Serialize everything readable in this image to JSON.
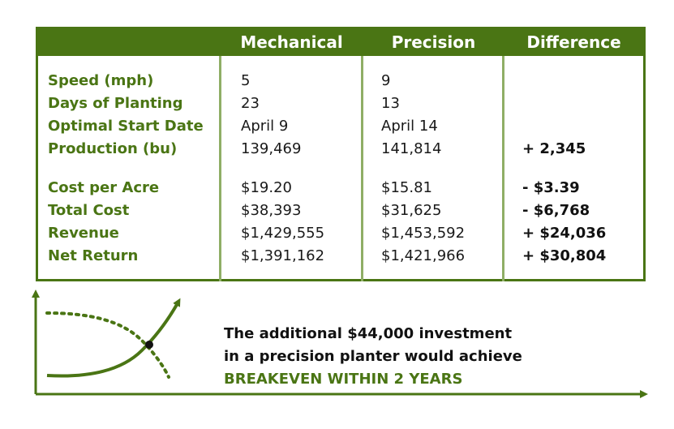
{
  "table": {
    "headers": [
      "",
      "Mechanical",
      "Precision",
      "Difference"
    ],
    "rows": [
      {
        "label": "Speed (mph)",
        "mechanical": "5",
        "precision": "9",
        "difference": ""
      },
      {
        "label": "Days of Planting",
        "mechanical": "23",
        "precision": "13",
        "difference": ""
      },
      {
        "label": "Optimal Start Date",
        "mechanical": "April 9",
        "precision": "April 14",
        "difference": ""
      },
      {
        "label": "Production (bu)",
        "mechanical": "139,469",
        "precision": "141,814",
        "difference": "+ 2,345"
      },
      {
        "label": "Cost per Acre",
        "mechanical": "$19.20",
        "precision": "$15.81",
        "difference": "- $3.39"
      },
      {
        "label": "Total Cost",
        "mechanical": "$38,393",
        "precision": "$31,625",
        "difference": "- $6,768"
      },
      {
        "label": "Revenue",
        "mechanical": "$1,429,555",
        "precision": "$1,453,592",
        "difference": "+ $24,036"
      },
      {
        "label": "Net Return",
        "mechanical": "$1,391,162",
        "precision": "$1,421,966",
        "difference": "+ $30,804"
      }
    ]
  },
  "note": {
    "line1": "The additional $44,000 investment",
    "line2": "in a precision planter would achieve",
    "highlight": "BREAKEVEN WITHIN 2 YEARS"
  },
  "colors": {
    "accent": "#4a7514",
    "divider": "#8fae66"
  },
  "chart_data": {
    "type": "table",
    "columns": [
      "Mechanical",
      "Precision",
      "Difference"
    ],
    "rows": [
      {
        "metric": "Speed (mph)",
        "mechanical": 5,
        "precision": 9
      },
      {
        "metric": "Days of Planting",
        "mechanical": 23,
        "precision": 13
      },
      {
        "metric": "Optimal Start Date",
        "mechanical": "April 9",
        "precision": "April 14"
      },
      {
        "metric": "Production (bu)",
        "mechanical": 139469,
        "precision": 141814,
        "difference": 2345
      },
      {
        "metric": "Cost per Acre",
        "mechanical": 19.2,
        "precision": 15.81,
        "difference": -3.39
      },
      {
        "metric": "Total Cost",
        "mechanical": 38393,
        "precision": 31625,
        "difference": -6768
      },
      {
        "metric": "Revenue",
        "mechanical": 1429555,
        "precision": 1453592,
        "difference": 24036
      },
      {
        "metric": "Net Return",
        "mechanical": 1391162,
        "precision": 1421966,
        "difference": 30804
      }
    ]
  }
}
